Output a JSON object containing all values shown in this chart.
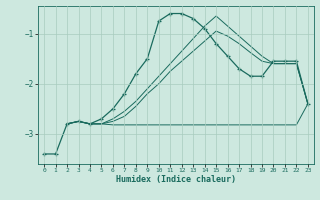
{
  "xlabel": "Humidex (Indice chaleur)",
  "bg_color": "#cde8df",
  "line_color": "#1a6b5e",
  "grid_color": "#a8ccbf",
  "xlim": [
    -0.5,
    23.5
  ],
  "ylim": [
    -3.6,
    -0.45
  ],
  "yticks": [
    -3,
    -2,
    -1
  ],
  "xticks": [
    0,
    1,
    2,
    3,
    4,
    5,
    6,
    7,
    8,
    9,
    10,
    11,
    12,
    13,
    14,
    15,
    16,
    17,
    18,
    19,
    20,
    21,
    22,
    23
  ],
  "line1_x": [
    0,
    1,
    2,
    3,
    4,
    5,
    6,
    7,
    8,
    9,
    10,
    11,
    12,
    13,
    14,
    15,
    16,
    17,
    18,
    19,
    20,
    21,
    22,
    23
  ],
  "line1_y": [
    -3.4,
    -3.4,
    -2.8,
    -2.75,
    -2.8,
    -2.7,
    -2.5,
    -2.2,
    -1.8,
    -1.5,
    -0.75,
    -0.6,
    -0.6,
    -0.7,
    -0.9,
    -1.2,
    -1.45,
    -1.7,
    -1.85,
    -1.85,
    -1.55,
    -1.55,
    -1.55,
    -2.4
  ],
  "line2_x": [
    2,
    3,
    4,
    5,
    6,
    7,
    8,
    9,
    10,
    11,
    12,
    13,
    14,
    15,
    16,
    17,
    18,
    19,
    20,
    21,
    22,
    23
  ],
  "line2_y": [
    -2.8,
    -2.75,
    -2.8,
    -2.8,
    -2.7,
    -2.55,
    -2.35,
    -2.1,
    -1.85,
    -1.6,
    -1.35,
    -1.1,
    -0.85,
    -0.65,
    -0.85,
    -1.05,
    -1.25,
    -1.45,
    -1.6,
    -1.6,
    -1.6,
    -2.4
  ],
  "line3_x": [
    2,
    3,
    4,
    5,
    6,
    7,
    8,
    9,
    10,
    11,
    12,
    13,
    14,
    15,
    16,
    17,
    18,
    19,
    20,
    21,
    22,
    23
  ],
  "line3_y": [
    -2.8,
    -2.75,
    -2.8,
    -2.8,
    -2.75,
    -2.65,
    -2.45,
    -2.2,
    -2.0,
    -1.75,
    -1.55,
    -1.35,
    -1.15,
    -0.95,
    -1.05,
    -1.2,
    -1.38,
    -1.55,
    -1.6,
    -1.6,
    -1.6,
    -2.4
  ],
  "line4_x": [
    2,
    3,
    4,
    5,
    6,
    7,
    8,
    9,
    10,
    11,
    12,
    13,
    14,
    15,
    16,
    17,
    18,
    19,
    20,
    21,
    22,
    23
  ],
  "line4_y": [
    -2.8,
    -2.75,
    -2.8,
    -2.8,
    -2.82,
    -2.82,
    -2.82,
    -2.82,
    -2.82,
    -2.82,
    -2.82,
    -2.82,
    -2.82,
    -2.82,
    -2.82,
    -2.82,
    -2.82,
    -2.82,
    -2.82,
    -2.82,
    -2.82,
    -2.4
  ]
}
